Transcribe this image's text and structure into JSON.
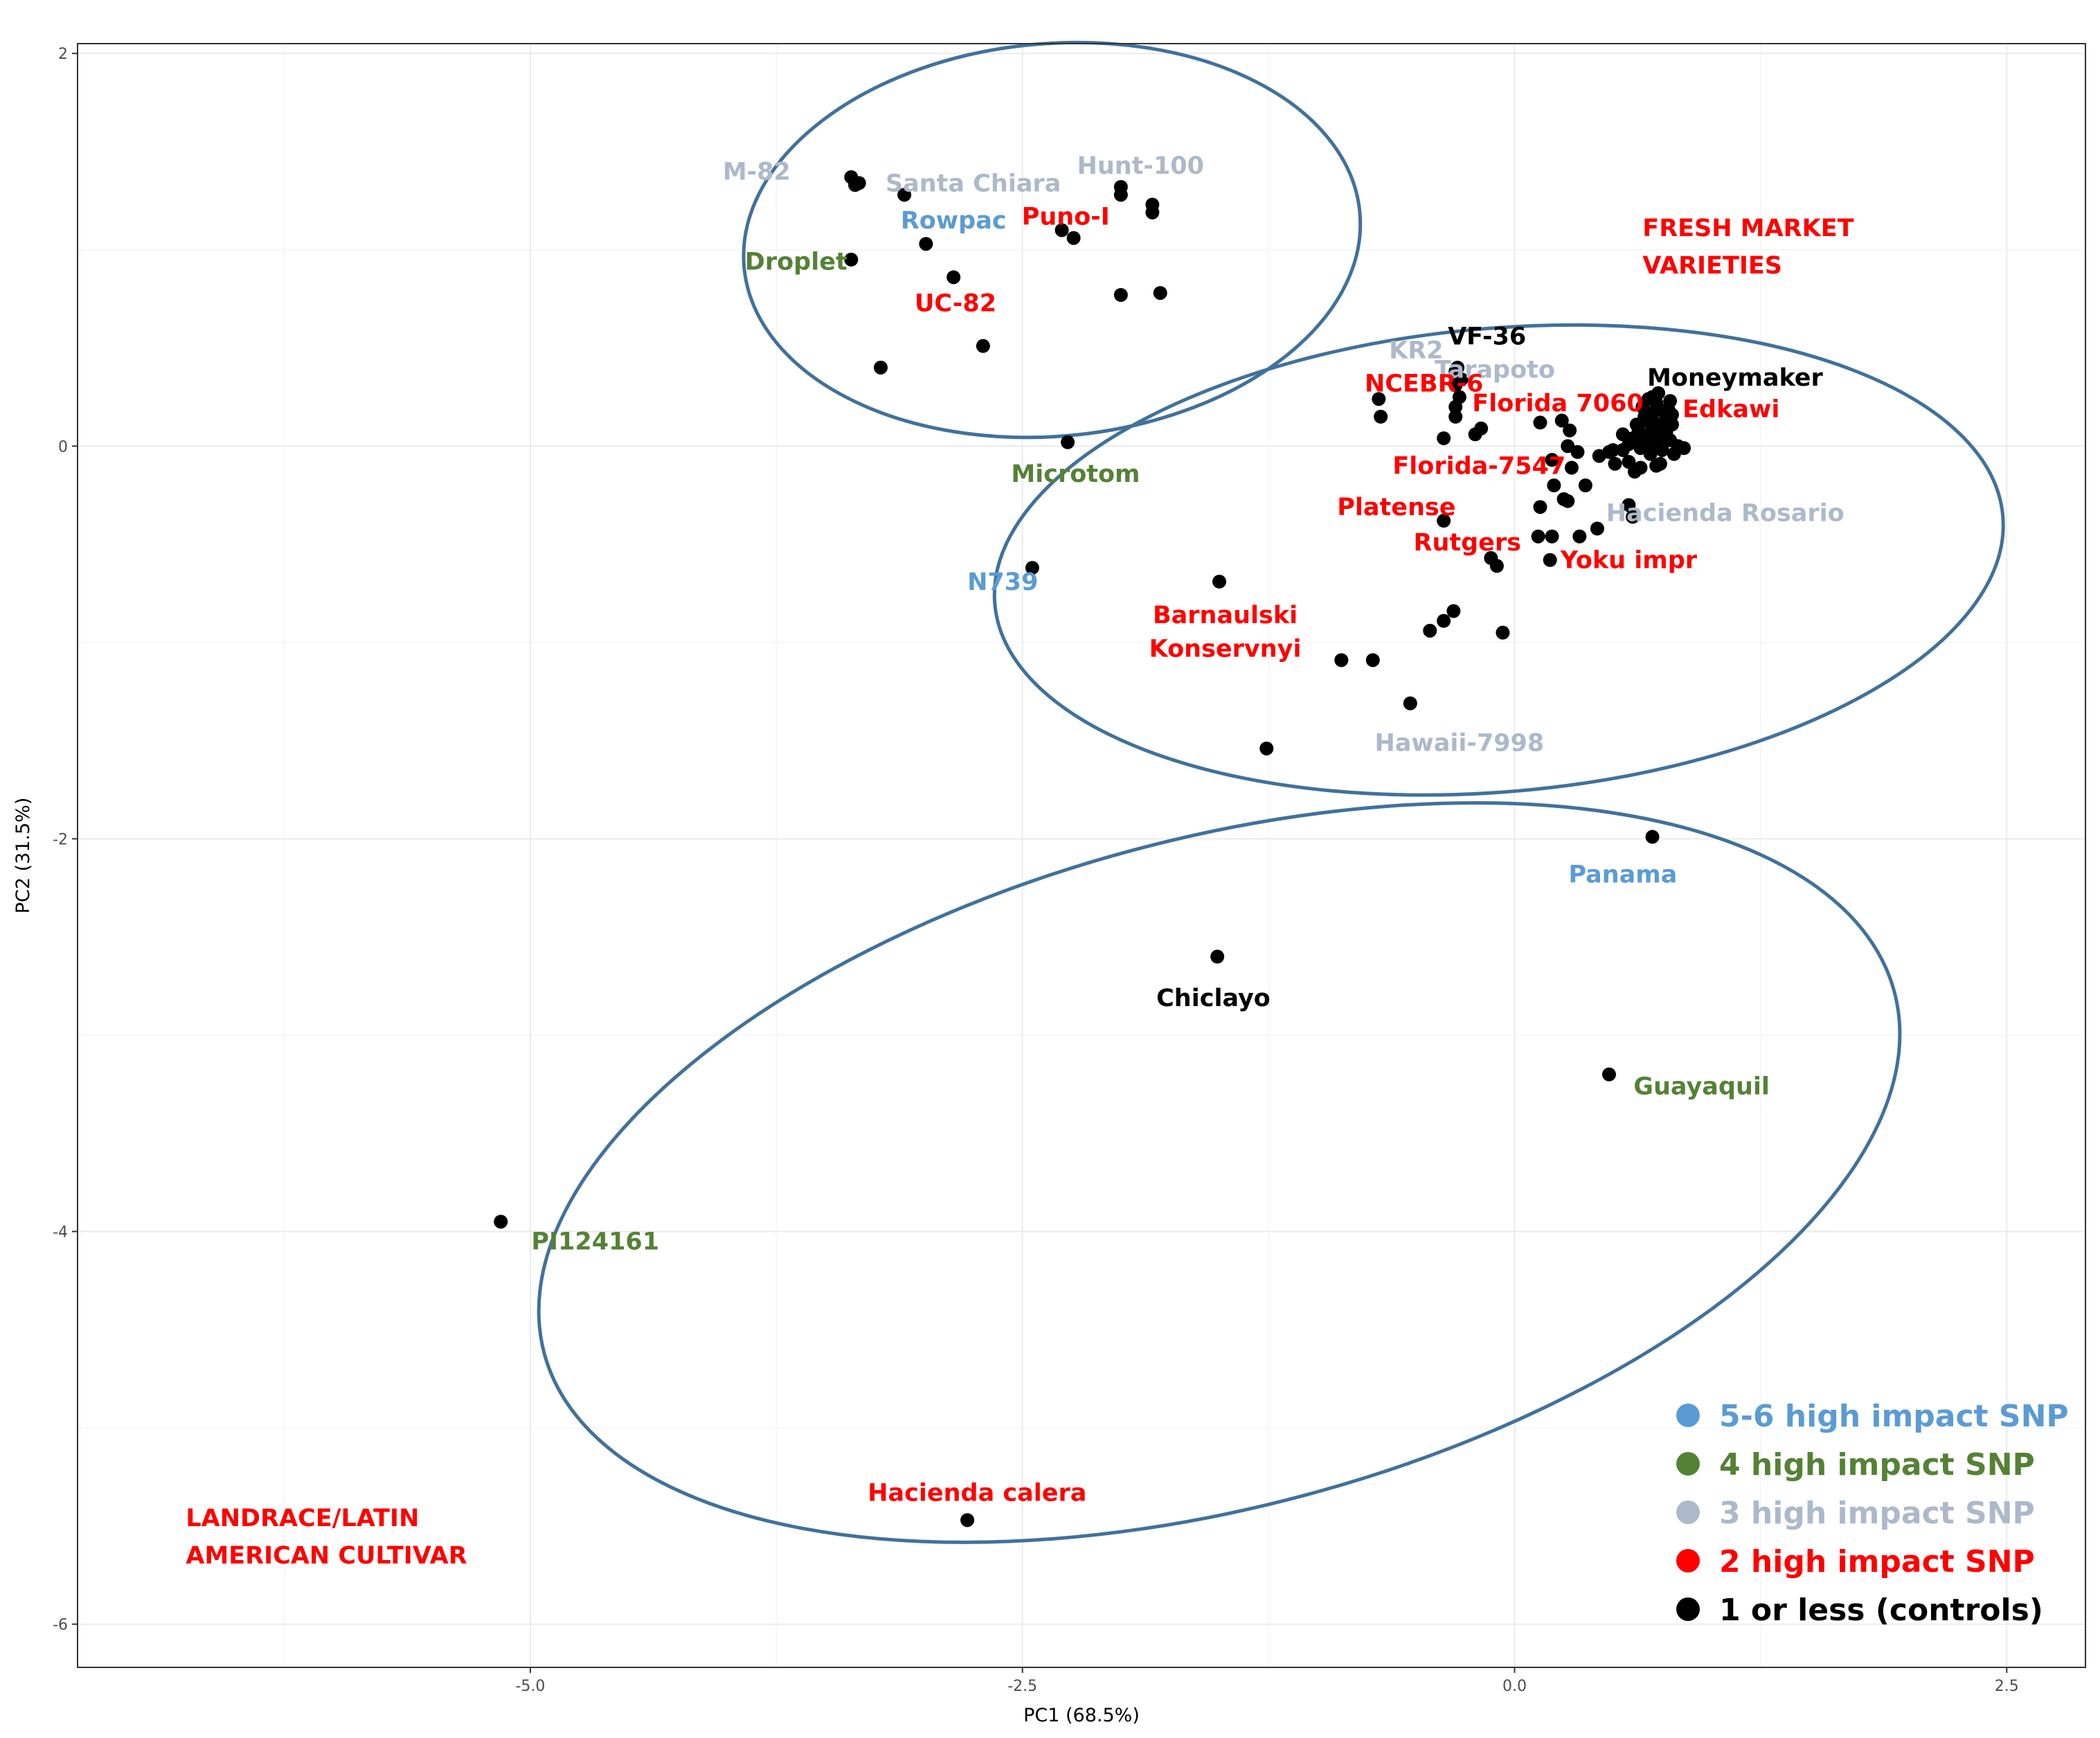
{
  "chart_data": {
    "type": "scatter",
    "xlabel": "PC1 (68.5%)",
    "ylabel": "PC2 (31.5%)",
    "xlim": [
      -7.3,
      2.9
    ],
    "ylim": [
      -6.22,
      2.05
    ],
    "x_ticks": [
      -5.0,
      -2.5,
      0.0,
      2.5
    ],
    "x_tick_labels": [
      "-5.0",
      "-2.5",
      "0.0",
      "2.5"
    ],
    "y_ticks": [
      2,
      0,
      -2,
      -4,
      -6
    ],
    "y_tick_labels": [
      "2",
      "0",
      "-2",
      "-4",
      "-6"
    ],
    "grid": true,
    "colors": {
      "blue": "#5b9bd5",
      "green": "#548235",
      "gray": "#adb9ca",
      "red": "#ff0000",
      "black": "#000000",
      "ellipse": "#41719c"
    },
    "annotations": [
      {
        "lines": [
          "FRESH MARKET",
          "VARIETIES"
        ],
        "x": 0.65,
        "y": 1.07,
        "color": "red",
        "anchor": "start"
      },
      {
        "lines": [
          "LANDRACE/LATIN",
          "AMERICAN CULTIVAR"
        ],
        "x": -6.75,
        "y": -5.5,
        "color": "red",
        "anchor": "start"
      }
    ],
    "legend": {
      "position": "bottom-right",
      "entries": [
        {
          "label": "5-6 high impact SNP",
          "color": "blue"
        },
        {
          "label": "4 high impact SNP",
          "color": "green"
        },
        {
          "label": "3 high impact SNP",
          "color": "gray"
        },
        {
          "label": "2 high impact SNP",
          "color": "red"
        },
        {
          "label": "1 or less (controls)",
          "color": "black"
        }
      ]
    },
    "ellipses": [
      {
        "group": "processing",
        "cx": -2.35,
        "cy": 1.05,
        "rx": 1.57,
        "ry": 1.0,
        "angle": -5
      },
      {
        "group": "fresh market",
        "cx": -0.08,
        "cy": -0.58,
        "rx": 2.57,
        "ry": 1.18,
        "angle": -5
      },
      {
        "group": "landrace",
        "cx": -1.5,
        "cy": -3.7,
        "rx": 3.55,
        "ry": 1.7,
        "angle": -15
      }
    ],
    "labels": [
      {
        "text": "M-82",
        "x": -3.85,
        "y": 1.4,
        "color": "gray"
      },
      {
        "text": "Santa Chiara",
        "x": -2.75,
        "y": 1.34,
        "color": "gray"
      },
      {
        "text": "Hunt-100",
        "x": -1.9,
        "y": 1.43,
        "color": "gray"
      },
      {
        "text": "Rowpac",
        "x": -2.85,
        "y": 1.15,
        "color": "blue"
      },
      {
        "text": "Puno-I",
        "x": -2.28,
        "y": 1.17,
        "color": "red"
      },
      {
        "text": "Droplet",
        "x": -3.65,
        "y": 0.94,
        "color": "green"
      },
      {
        "text": "UC-82",
        "x": -2.84,
        "y": 0.73,
        "color": "red"
      },
      {
        "text": "Microtom",
        "x": -2.23,
        "y": -0.14,
        "color": "green"
      },
      {
        "text": "N739",
        "x": -2.6,
        "y": -0.69,
        "color": "blue"
      },
      {
        "text": "KR2",
        "x": -0.5,
        "y": 0.49,
        "color": "gray"
      },
      {
        "text": "VF-36",
        "x": -0.14,
        "y": 0.56,
        "color": "black"
      },
      {
        "text": "Tarapoto",
        "x": -0.1,
        "y": 0.39,
        "color": "gray"
      },
      {
        "text": "Moneymaker",
        "x": 1.12,
        "y": 0.35,
        "color": "black"
      },
      {
        "text": "NCEBR-6",
        "x": -0.46,
        "y": 0.32,
        "color": "red"
      },
      {
        "text": "Florida 7060",
        "x": 0.22,
        "y": 0.22,
        "color": "red"
      },
      {
        "text": "Edkawi",
        "x": 1.1,
        "y": 0.19,
        "color": "red"
      },
      {
        "text": "Florida-7547",
        "x": -0.18,
        "y": -0.1,
        "color": "red"
      },
      {
        "text": "Platense",
        "x": -0.6,
        "y": -0.31,
        "color": "red"
      },
      {
        "text": "Hacienda Rosario",
        "x": 1.07,
        "y": -0.34,
        "color": "gray"
      },
      {
        "text": "Rutgers",
        "x": -0.24,
        "y": -0.49,
        "color": "red"
      },
      {
        "text": "Yoku impr",
        "x": 0.58,
        "y": -0.58,
        "color": "red"
      },
      {
        "text": "Barnaulski",
        "x": -1.47,
        "y": -0.86,
        "color": "red"
      },
      {
        "text": "Konservnyi",
        "x": -1.47,
        "y": -1.03,
        "color": "red"
      },
      {
        "text": "Hawaii-7998",
        "x": -0.28,
        "y": -1.51,
        "color": "gray"
      },
      {
        "text": "Panama",
        "x": 0.55,
        "y": -2.18,
        "color": "blue"
      },
      {
        "text": "Chiclayo",
        "x": -1.53,
        "y": -2.81,
        "color": "black"
      },
      {
        "text": "Guayaquil",
        "x": 0.95,
        "y": -3.26,
        "color": "green"
      },
      {
        "text": "PI124161",
        "x": -4.67,
        "y": -4.05,
        "color": "green"
      },
      {
        "text": "Hacienda calera",
        "x": -2.73,
        "y": -5.33,
        "color": "red"
      }
    ],
    "points": [
      [
        -3.37,
        1.37
      ],
      [
        -3.33,
        1.34
      ],
      [
        -3.35,
        1.33
      ],
      [
        -3.1,
        1.28
      ],
      [
        -2.0,
        1.32
      ],
      [
        -2.0,
        1.28
      ],
      [
        -1.84,
        1.23
      ],
      [
        -1.84,
        1.19
      ],
      [
        -2.3,
        1.1
      ],
      [
        -2.24,
        1.06
      ],
      [
        -3.37,
        0.95
      ],
      [
        -2.99,
        1.03
      ],
      [
        -2.85,
        0.86
      ],
      [
        -2.0,
        0.77
      ],
      [
        -1.8,
        0.78
      ],
      [
        -2.7,
        0.51
      ],
      [
        -3.22,
        0.4
      ],
      [
        -2.27,
        0.02
      ],
      [
        -2.45,
        -0.62
      ],
      [
        -1.5,
        -0.69
      ],
      [
        -0.69,
        0.24
      ],
      [
        -0.68,
        0.15
      ],
      [
        -0.3,
        0.38
      ],
      [
        -0.29,
        0.4
      ],
      [
        -0.27,
        0.34
      ],
      [
        -0.3,
        0.31
      ],
      [
        -0.28,
        0.25
      ],
      [
        -0.3,
        0.2
      ],
      [
        -0.3,
        0.15
      ],
      [
        -0.36,
        0.04
      ],
      [
        -0.2,
        0.06
      ],
      [
        -0.17,
        0.09
      ],
      [
        0.13,
        0.12
      ],
      [
        0.24,
        0.13
      ],
      [
        0.28,
        0.08
      ],
      [
        0.27,
        0.0
      ],
      [
        0.32,
        -0.03
      ],
      [
        0.29,
        -0.11
      ],
      [
        0.19,
        -0.07
      ],
      [
        0.2,
        -0.2
      ],
      [
        0.25,
        -0.27
      ],
      [
        0.27,
        -0.28
      ],
      [
        0.13,
        -0.31
      ],
      [
        0.36,
        -0.2
      ],
      [
        0.43,
        -0.05
      ],
      [
        0.48,
        -0.03
      ],
      [
        0.51,
        -0.09
      ],
      [
        0.5,
        -0.02
      ],
      [
        0.58,
        -0.08
      ],
      [
        0.61,
        -0.13
      ],
      [
        0.64,
        -0.11
      ],
      [
        0.58,
        -0.3
      ],
      [
        0.6,
        -0.36
      ],
      [
        0.33,
        -0.46
      ],
      [
        0.42,
        -0.42
      ],
      [
        0.12,
        -0.46
      ],
      [
        0.19,
        -0.46
      ],
      [
        0.18,
        -0.58
      ],
      [
        -0.36,
        -0.38
      ],
      [
        -0.12,
        -0.57
      ],
      [
        -0.09,
        -0.61
      ],
      [
        -0.31,
        -0.84
      ],
      [
        -0.36,
        -0.89
      ],
      [
        -0.43,
        -0.94
      ],
      [
        -0.06,
        -0.95
      ],
      [
        -0.88,
        -1.09
      ],
      [
        -0.72,
        -1.09
      ],
      [
        -0.53,
        -1.31
      ],
      [
        -1.26,
        -1.54
      ],
      [
        0.65,
        0.2
      ],
      [
        0.68,
        0.24
      ],
      [
        0.72,
        0.22
      ],
      [
        0.75,
        0.18
      ],
      [
        0.71,
        0.12
      ],
      [
        0.66,
        0.15
      ],
      [
        0.7,
        0.09
      ],
      [
        0.74,
        0.1
      ],
      [
        0.77,
        0.07
      ],
      [
        0.8,
        0.11
      ],
      [
        0.79,
        0.03
      ],
      [
        0.72,
        0.02
      ],
      [
        0.68,
        0.06
      ],
      [
        0.63,
        0.08
      ],
      [
        0.6,
        0.04
      ],
      [
        0.64,
        -0.01
      ],
      [
        0.69,
        -0.04
      ],
      [
        0.75,
        -0.02
      ],
      [
        0.81,
        -0.04
      ],
      [
        0.83,
        0.0
      ],
      [
        0.86,
        -0.01
      ],
      [
        0.62,
        0.11
      ],
      [
        0.7,
        0.17
      ],
      [
        0.77,
        0.14
      ],
      [
        0.58,
        0.01
      ],
      [
        0.55,
        -0.02
      ],
      [
        0.74,
        -0.09
      ],
      [
        0.72,
        -0.1
      ],
      [
        0.66,
        0.02
      ],
      [
        0.78,
        0.19
      ],
      [
        0.73,
        0.27
      ],
      [
        0.7,
        0.25
      ],
      [
        0.67,
        0.13
      ],
      [
        0.55,
        0.06
      ],
      [
        0.71,
        0.0
      ],
      [
        0.76,
        0.05
      ],
      [
        0.79,
        0.23
      ],
      [
        0.74,
        0.06
      ],
      [
        0.8,
        0.16
      ],
      [
        0.7,
        -1.99
      ],
      [
        -1.51,
        -2.6
      ],
      [
        0.48,
        -3.2
      ],
      [
        -5.15,
        -3.95
      ],
      [
        -2.78,
        -5.47
      ]
    ]
  }
}
